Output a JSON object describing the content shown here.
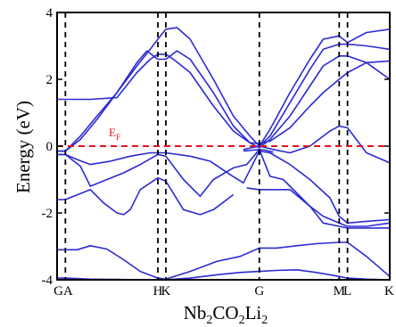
{
  "chart_data": {
    "type": "line",
    "title": "",
    "ylabel": "Energy (eV)",
    "xlabel_parts": [
      {
        "text": "Nb",
        "sub": false
      },
      {
        "text": "2",
        "sub": true
      },
      {
        "text": "CO",
        "sub": false
      },
      {
        "text": "2",
        "sub": true
      },
      {
        "text": "Li",
        "sub": false
      },
      {
        "text": "2",
        "sub": true
      }
    ],
    "ylim": [
      -4,
      4
    ],
    "yticks": [
      {
        "value": 4,
        "label": "4"
      },
      {
        "value": 2,
        "label": "2"
      },
      {
        "value": 0,
        "label": "0"
      },
      {
        "value": -2,
        "label": "-2"
      },
      {
        "value": -4,
        "label": "-4"
      }
    ],
    "xlim": [
      0,
      1
    ],
    "kpoints": [
      {
        "label": "G",
        "x": 0.0
      },
      {
        "label": "A",
        "x": 0.025
      },
      {
        "label": "H",
        "x": 0.303
      },
      {
        "label": "K",
        "x": 0.327
      },
      {
        "label": "G",
        "x": 0.608
      },
      {
        "label": "M",
        "x": 0.848
      },
      {
        "label": "L",
        "x": 0.873
      },
      {
        "label": "K",
        "x": 1.0
      }
    ],
    "fermi": {
      "value": 0,
      "label_main": "E",
      "label_sub": "F",
      "color": "#e8121b"
    },
    "band_color": "#2b2bd6",
    "grid": false,
    "series": [
      {
        "x": [
          0,
          0.025,
          0.1,
          0.18,
          0.25,
          0.303,
          0.327,
          0.4,
          0.48,
          0.55,
          0.608,
          0.66,
          0.72,
          0.78,
          0.82,
          0.848,
          0.873,
          0.93,
          1.0
        ],
        "values": [
          -3.95,
          -3.95,
          -3.98,
          -3.99,
          -4.0,
          -4.0,
          -4.0,
          -3.95,
          -3.85,
          -3.78,
          -3.75,
          -3.72,
          -3.7,
          -3.78,
          -3.85,
          -3.9,
          -3.95,
          -3.98,
          -4.0
        ]
      },
      {
        "x": [
          0,
          0.025,
          0.06,
          0.1,
          0.15,
          0.2,
          0.25,
          0.303,
          0.327,
          0.4,
          0.48,
          0.55,
          0.608
        ],
        "values": [
          -3.1,
          -3.1,
          -3.1,
          -2.98,
          -3.08,
          -3.4,
          -3.75,
          -3.95,
          -3.98,
          -3.75,
          -3.45,
          -3.3,
          -3.05
        ]
      },
      {
        "x": [
          0.608,
          0.66,
          0.72,
          0.78,
          0.848,
          0.873,
          0.93,
          1.0
        ],
        "values": [
          -3.05,
          -3.05,
          -2.98,
          -2.92,
          -2.88,
          -2.88,
          -3.3,
          -3.9
        ]
      },
      {
        "x": [
          0,
          0.025,
          0.06,
          0.1,
          0.16,
          0.22,
          0.28,
          0.303,
          0.327,
          0.4,
          0.46,
          0.52,
          0.56,
          0.608,
          0.64,
          0.7,
          0.76,
          0.82,
          0.848,
          0.873,
          0.93,
          1.0
        ],
        "values": [
          -0.25,
          -0.25,
          -0.4,
          -0.55,
          -0.45,
          -0.3,
          -0.2,
          -0.2,
          -0.2,
          -0.3,
          -0.45,
          -0.85,
          -1.1,
          -0.15,
          -0.2,
          -0.55,
          -1.0,
          -1.55,
          -2.1,
          -2.3,
          -2.25,
          -2.2
        ]
      },
      {
        "x": [
          0.56,
          0.59,
          0.608,
          0.625,
          0.65
        ],
        "values": [
          -0.15,
          -0.12,
          -0.1,
          -0.12,
          -0.18
        ]
      },
      {
        "x": [
          0,
          0.025,
          0.07,
          0.1,
          0.15,
          0.2,
          0.25,
          0.303,
          0.327,
          0.38,
          0.43,
          0.47,
          0.53,
          0.57,
          0.608,
          0.64,
          0.68,
          0.72,
          0.76,
          0.8,
          0.848,
          0.873,
          0.93,
          1.0
        ],
        "values": [
          -0.25,
          -0.25,
          -0.6,
          -1.2,
          -1.0,
          -0.8,
          -0.55,
          -0.25,
          -0.3,
          -1.0,
          -1.5,
          -1.0,
          -0.65,
          -0.55,
          -0.1,
          -0.9,
          -1.0,
          -1.4,
          -1.8,
          -2.1,
          -2.3,
          -2.4,
          -2.4,
          -2.3
        ]
      },
      {
        "x": [
          0,
          0.025,
          0.1,
          0.14,
          0.18,
          0.2,
          0.22,
          0.25,
          0.303,
          0.327,
          0.38,
          0.43,
          0.47,
          0.53
        ],
        "values": [
          -1.6,
          -1.6,
          -1.3,
          -1.7,
          -2.0,
          -2.05,
          -1.9,
          -1.3,
          -0.95,
          -1.05,
          -1.9,
          -2.05,
          -1.9,
          -1.45
        ]
      },
      {
        "x": [
          0.57,
          0.608,
          0.64,
          0.7,
          0.76,
          0.8,
          0.848,
          0.873,
          0.93,
          1.0
        ],
        "values": [
          -1.25,
          -1.3,
          -1.3,
          -1.3,
          -1.8,
          -2.3,
          -2.4,
          -2.45,
          -2.45,
          -2.45
        ]
      },
      {
        "x": [
          0,
          0.025,
          0.1,
          0.18,
          0.24,
          0.28,
          0.303,
          0.327,
          0.35,
          0.4,
          0.47,
          0.53,
          0.58,
          0.608,
          0.64,
          0.7,
          0.76,
          0.8,
          0.848,
          0.873,
          0.93,
          1.0
        ],
        "values": [
          1.4,
          1.4,
          1.4,
          1.45,
          2.2,
          2.6,
          2.75,
          2.75,
          2.6,
          2.2,
          1.2,
          0.45,
          0.1,
          0.08,
          0.15,
          0.55,
          1.2,
          1.6,
          2.0,
          2.2,
          2.5,
          2.55
        ]
      },
      {
        "x": [
          0,
          0.025,
          0.07,
          0.12,
          0.18,
          0.24,
          0.27,
          0.303,
          0.327,
          0.36,
          0.4,
          0.47,
          0.53,
          0.58,
          0.608,
          0.64,
          0.7,
          0.76,
          0.8,
          0.848,
          0.873,
          0.93,
          1.0
        ],
        "values": [
          -0.15,
          -0.15,
          0.2,
          0.8,
          1.6,
          2.5,
          2.85,
          2.6,
          2.6,
          2.85,
          2.6,
          1.6,
          0.6,
          0.1,
          -0.05,
          0.2,
          0.9,
          1.8,
          2.4,
          2.7,
          2.7,
          2.5,
          2.0
        ]
      },
      {
        "x": [
          0,
          0.025,
          0.07,
          0.12,
          0.18,
          0.24,
          0.28,
          0.303,
          0.327,
          0.36,
          0.4,
          0.47,
          0.53,
          0.58,
          0.608,
          0.64,
          0.7,
          0.76,
          0.8,
          0.848,
          0.873,
          0.93,
          1.0
        ],
        "values": [
          -0.15,
          -0.15,
          0.3,
          0.9,
          1.6,
          2.4,
          2.9,
          3.2,
          3.5,
          3.55,
          3.2,
          2.0,
          0.9,
          0.3,
          0.0,
          0.3,
          1.3,
          2.3,
          2.9,
          3.05,
          3.05,
          3.0,
          2.9
        ]
      },
      {
        "x": [
          0.608,
          0.64,
          0.7,
          0.76,
          0.8,
          0.848,
          0.873,
          0.93,
          1.0
        ],
        "values": [
          0.0,
          0.5,
          1.6,
          2.6,
          3.2,
          3.3,
          3.1,
          3.4,
          3.5
        ]
      },
      {
        "x": [
          0.56,
          0.608,
          0.65,
          0.7,
          0.76,
          0.82,
          0.848,
          0.873,
          0.93,
          1.0
        ],
        "values": [
          -0.1,
          0.0,
          -0.1,
          -0.2,
          0.0,
          0.45,
          0.6,
          0.55,
          -0.2,
          -0.5
        ]
      }
    ]
  }
}
